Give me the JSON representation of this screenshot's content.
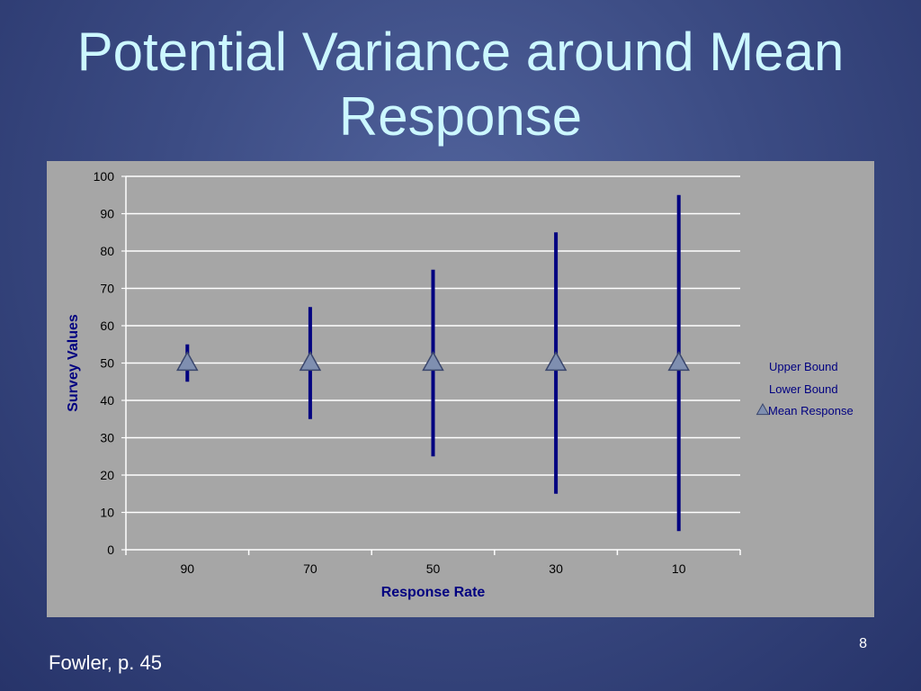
{
  "slide": {
    "title_line1": "Potential Variance around Mean",
    "title_line2": "Response",
    "footer": "Fowler, p. 45",
    "page_number": "8"
  },
  "colors": {
    "bar": "#000080",
    "marker_fill": "#7f8fb0",
    "marker_stroke": "#3a466c",
    "gridline": "#ffffff",
    "plot_bg": "#a6a6a6"
  },
  "chart_data": {
    "type": "line",
    "categories": [
      "90",
      "70",
      "50",
      "30",
      "10"
    ],
    "series": [
      {
        "name": "Upper Bound",
        "values": [
          55,
          65,
          75,
          85,
          95
        ]
      },
      {
        "name": "Lower Bound",
        "values": [
          45,
          35,
          25,
          15,
          5
        ]
      },
      {
        "name": "Mean Response",
        "values": [
          50,
          50,
          50,
          50,
          50
        ]
      }
    ],
    "xlabel": "Response Rate",
    "ylabel": "Survey Values",
    "ylim": [
      0,
      100
    ],
    "yticks": [
      0,
      10,
      20,
      30,
      40,
      50,
      60,
      70,
      80,
      90,
      100
    ],
    "grid": true,
    "legend": "right",
    "marker": "triangle"
  }
}
